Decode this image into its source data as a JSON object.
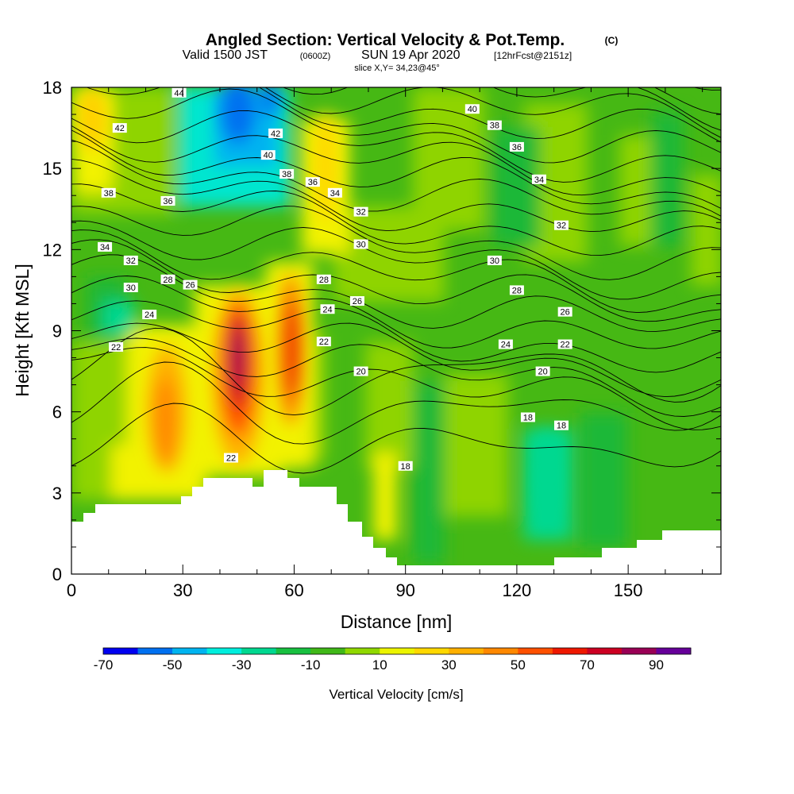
{
  "chart_data": {
    "type": "heatmap",
    "title": "Angled Section: Vertical Velocity & Pot.Temp.",
    "title_units": "(C)",
    "subtitle": {
      "valid": "Valid 1500 JST",
      "utc": "(0600Z)",
      "date": "SUN 19 Apr 2020",
      "forecast": "[12hrFcst@2151z]"
    },
    "slice_label": "slice X,Y= 34,23@45°",
    "xlabel": "Distance [nm]",
    "ylabel": "Height [Kft MSL]",
    "xlim": [
      0,
      175
    ],
    "ylim": [
      0,
      18
    ],
    "x_ticks": [
      0,
      30,
      60,
      90,
      120,
      150
    ],
    "y_ticks": [
      0,
      3,
      6,
      9,
      12,
      15,
      18
    ],
    "colorbar": {
      "label": "Vertical Velocity [cm/s]",
      "tick_labels": [
        "-70",
        "-50",
        "-30",
        "-10",
        "10",
        "30",
        "50",
        "70",
        "90"
      ],
      "colors": [
        "#0000f0",
        "#0070f0",
        "#00b4f0",
        "#00eedd",
        "#00d890",
        "#18c040",
        "#40b818",
        "#90d800",
        "#ecf400",
        "#ffd800",
        "#ffb000",
        "#ff8800",
        "#ff5000",
        "#ee1800",
        "#cc0022",
        "#990055",
        "#660099"
      ]
    },
    "fill_regions": [
      {
        "name": "strong-upper-left",
        "color": "#ffd800",
        "x": [
          0,
          10
        ],
        "y": [
          14,
          18
        ]
      },
      {
        "name": "strong-updraft-1",
        "color": "#ff8800",
        "x": [
          20,
          30
        ],
        "y": [
          3.5,
          8.5
        ]
      },
      {
        "name": "strong-updraft-2-core",
        "color": "#990055",
        "x": [
          41,
          47
        ],
        "y": [
          4.5,
          10
        ]
      },
      {
        "name": "strong-updraft-3",
        "color": "#ee1800",
        "x": [
          57,
          62
        ],
        "y": [
          5.5,
          10.5
        ]
      },
      {
        "name": "downdraft-upper",
        "color": "#0070f0",
        "x": [
          40,
          55
        ],
        "y": [
          15,
          18
        ]
      },
      {
        "name": "downdraft-right",
        "color": "#00d890",
        "x": [
          125,
          135
        ],
        "y": [
          1,
          6
        ]
      }
    ],
    "theta_contours": [
      {
        "label": "18",
        "label_pos": [
          [
            90,
            4
          ],
          [
            123,
            5.8
          ],
          [
            132,
            5.5
          ]
        ]
      },
      {
        "label": "20",
        "label_pos": [
          [
            78,
            7.5
          ],
          [
            127,
            7.5
          ]
        ]
      },
      {
        "label": "22",
        "label_pos": [
          [
            12,
            8.4
          ],
          [
            43,
            4.3
          ],
          [
            68,
            8.6
          ],
          [
            133,
            8.5
          ]
        ]
      },
      {
        "label": "24",
        "label_pos": [
          [
            21,
            9.6
          ],
          [
            69,
            9.8
          ],
          [
            117,
            8.5
          ]
        ]
      },
      {
        "label": "26",
        "label_pos": [
          [
            32,
            10.7
          ],
          [
            77,
            10.1
          ],
          [
            133,
            9.7
          ]
        ]
      },
      {
        "label": "28",
        "label_pos": [
          [
            26,
            10.9
          ],
          [
            68,
            10.9
          ],
          [
            120,
            10.5
          ]
        ]
      },
      {
        "label": "30",
        "label_pos": [
          [
            16,
            10.6
          ],
          [
            78,
            12.2
          ],
          [
            114,
            11.6
          ]
        ]
      },
      {
        "label": "32",
        "label_pos": [
          [
            16,
            11.6
          ],
          [
            78,
            13.4
          ],
          [
            132,
            12.9
          ]
        ]
      },
      {
        "label": "34",
        "label_pos": [
          [
            9,
            12.1
          ],
          [
            71,
            14.1
          ],
          [
            126,
            14.6
          ]
        ]
      },
      {
        "label": "36",
        "label_pos": [
          [
            26,
            13.8
          ],
          [
            65,
            14.5
          ],
          [
            120,
            15.8
          ]
        ]
      },
      {
        "label": "38",
        "label_pos": [
          [
            10,
            14.1
          ],
          [
            58,
            14.8
          ],
          [
            114,
            16.6
          ]
        ]
      },
      {
        "label": "40",
        "label_pos": [
          [
            53,
            15.5
          ],
          [
            108,
            17.2
          ]
        ]
      },
      {
        "label": "42",
        "label_pos": [
          [
            13,
            16.5
          ],
          [
            55,
            16.3
          ]
        ]
      },
      {
        "label": "44",
        "label_pos": [
          [
            29,
            17.8
          ]
        ]
      }
    ]
  }
}
